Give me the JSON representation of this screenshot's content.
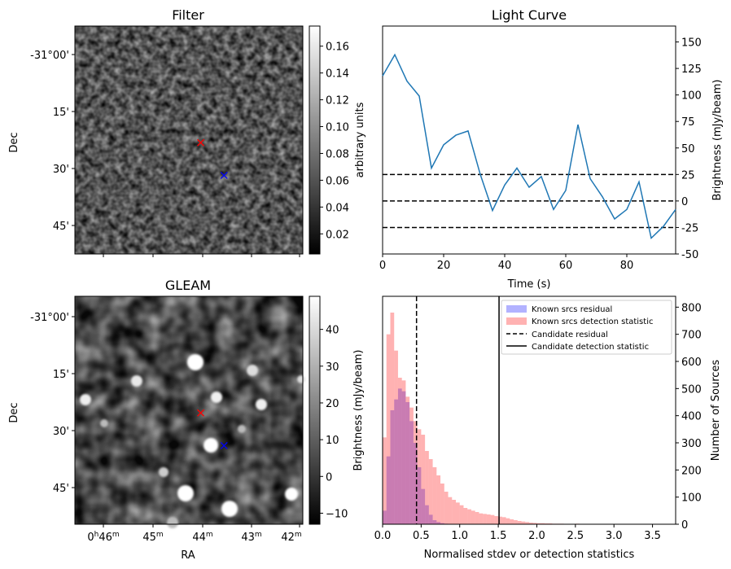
{
  "chart_data": [
    {
      "id": "filter",
      "type": "heatmap",
      "title": "Filter",
      "ylabel": "Dec",
      "yticks": [
        "-31°00'",
        "15'",
        "30'",
        "45'"
      ],
      "colorbar": {
        "label": "arbitrary units",
        "ticks": [
          "0.02",
          "0.04",
          "0.06",
          "0.08",
          "0.10",
          "0.12",
          "0.14",
          "0.16"
        ],
        "range": [
          0.005,
          0.175
        ],
        "colormap": "gray"
      },
      "markers": [
        {
          "symbol": "x",
          "color": "#ff0000",
          "ra_h": 44.04,
          "dec_min": 23.2
        },
        {
          "symbol": "x",
          "color": "#0000ff",
          "ra_h": 43.57,
          "dec_min": 31.8
        }
      ]
    },
    {
      "id": "lightcurve",
      "type": "line",
      "title": "Light Curve",
      "xlabel": "Time (s)",
      "ylabel": "Brightness (mJy/beam)",
      "xlim": [
        0,
        96
      ],
      "ylim": [
        -50,
        165
      ],
      "xticks": [
        "0",
        "20",
        "40",
        "60",
        "80"
      ],
      "yticks": [
        "-50",
        "-25",
        "0",
        "25",
        "50",
        "75",
        "100",
        "125",
        "150"
      ],
      "series": [
        {
          "color": "#1f77b4",
          "x": [
            0,
            4,
            8,
            12,
            16,
            20,
            24,
            28,
            32,
            36,
            40,
            44,
            48,
            52,
            56,
            60,
            64,
            68,
            72,
            76,
            80,
            84,
            88,
            92,
            96
          ],
          "y": [
            118,
            138,
            113,
            99,
            31,
            53,
            62,
            66,
            25,
            -9,
            15,
            31,
            13,
            23,
            -8,
            10,
            72,
            21,
            4,
            -17,
            -8,
            18,
            -35,
            -24,
            -8
          ]
        }
      ],
      "hlines": [
        {
          "y": 25,
          "style": "dashed",
          "color": "#000000"
        },
        {
          "y": 0,
          "style": "dashed",
          "color": "#000000"
        },
        {
          "y": -25,
          "style": "dashed",
          "color": "#000000"
        }
      ]
    },
    {
      "id": "gleam",
      "type": "heatmap",
      "title": "GLEAM",
      "xlabel": "RA",
      "ylabel": "Dec",
      "xticks": [
        {
          "main": "0",
          "sup1": "h",
          "main2": "46",
          "sup2": "m"
        },
        {
          "main": "45",
          "sup": "m"
        },
        {
          "main": "44",
          "sup": "m"
        },
        {
          "main": "43",
          "sup": "m"
        },
        {
          "main": "42",
          "sup": "m"
        }
      ],
      "yticks": [
        "-31°00'",
        "15'",
        "30'",
        "45'"
      ],
      "colorbar": {
        "label": "Brightness (mJy/beam)",
        "ticks": [
          "−10",
          "0",
          "10",
          "20",
          "30",
          "40"
        ],
        "range": [
          -13,
          49
        ],
        "colormap": "gray"
      },
      "markers": [
        {
          "symbol": "x",
          "color": "#ff0000",
          "ra_h": 44.04,
          "dec_min": 23.2
        },
        {
          "symbol": "x",
          "color": "#0000ff",
          "ra_h": 43.57,
          "dec_min": 31.8
        }
      ]
    },
    {
      "id": "histogram",
      "type": "bar",
      "xlabel": "Normalised stdev or detection statistics",
      "ylabel_right": "Number of Sources",
      "xlim": [
        0,
        3.8
      ],
      "ylim": [
        0,
        840
      ],
      "xticks": [
        "0.0",
        "0.5",
        "1.0",
        "1.5",
        "2.0",
        "2.5",
        "3.0",
        "3.5"
      ],
      "yticks": [
        "0",
        "100",
        "200",
        "300",
        "400",
        "500",
        "600",
        "700",
        "800"
      ],
      "bin_width": 0.05,
      "series": [
        {
          "name": "Known srcs residual",
          "color": "#0000ff",
          "alpha": 0.3,
          "bin_start": 0,
          "values": [
            50,
            250,
            420,
            460,
            500,
            490,
            450,
            380,
            300,
            210,
            130,
            70,
            35,
            15,
            8,
            4,
            2,
            1
          ]
        },
        {
          "name": "Known srcs detection statistic",
          "color": "#ff0000",
          "alpha": 0.3,
          "bin_start": 0,
          "values": [
            320,
            700,
            780,
            640,
            540,
            530,
            470,
            430,
            380,
            350,
            330,
            270,
            240,
            210,
            180,
            150,
            120,
            100,
            90,
            80,
            70,
            60,
            55,
            50,
            45,
            40,
            38,
            36,
            34,
            30,
            28,
            26,
            22,
            18,
            15,
            12,
            10,
            8,
            6,
            5,
            4,
            4,
            3,
            3,
            2,
            2,
            2,
            0,
            0,
            0,
            2,
            0,
            1,
            1,
            1,
            0,
            0,
            1,
            0,
            0,
            0,
            1,
            0,
            1,
            0,
            0,
            0,
            0,
            0,
            0,
            0,
            0,
            0,
            0,
            0,
            0
          ]
        }
      ],
      "vlines": [
        {
          "name": "Candidate residual",
          "x": 0.44,
          "style": "dashed",
          "color": "#000000"
        },
        {
          "name": "Candidate detection statistic",
          "x": 1.51,
          "style": "solid",
          "color": "#000000"
        }
      ],
      "legend_position": "top-right"
    }
  ]
}
